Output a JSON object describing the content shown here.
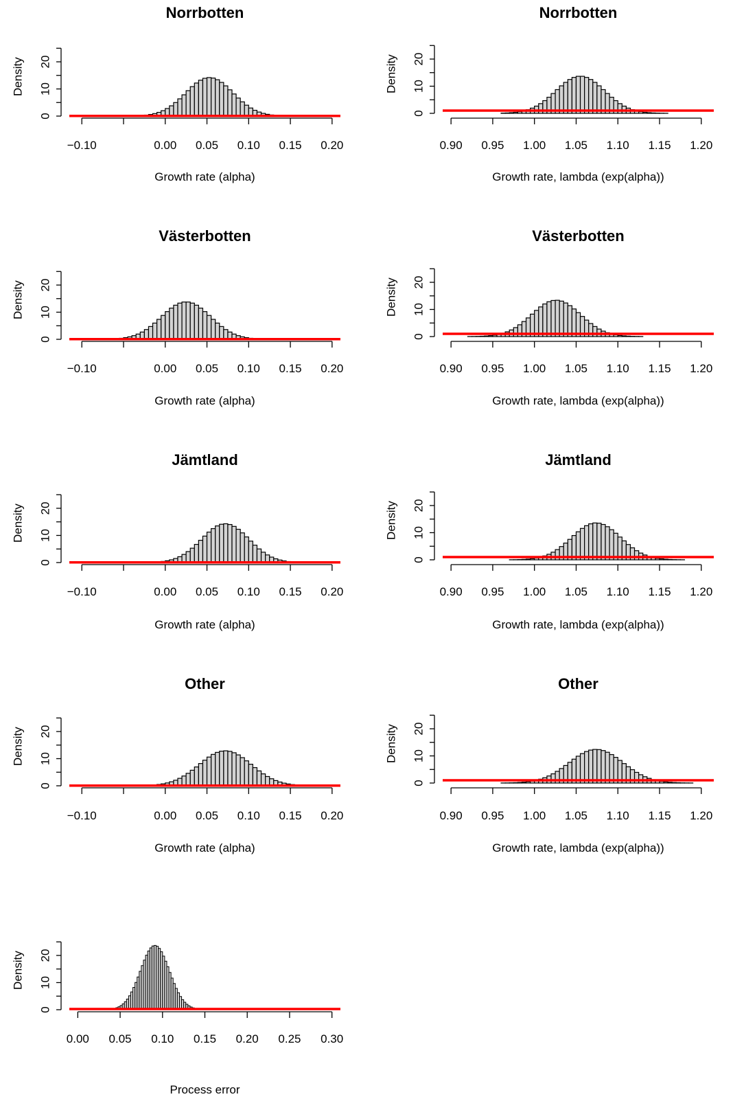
{
  "chart_data": [
    {
      "type": "bar",
      "title": "Norrbotten",
      "xlabel": "Growth rate (alpha)",
      "ylabel": "Density",
      "xlim": [
        -0.115,
        0.21
      ],
      "ylim": [
        0,
        25
      ],
      "xticks": [
        -0.1,
        -0.05,
        0.0,
        0.05,
        0.1,
        0.15,
        0.2
      ],
      "xtick_labels": [
        "−0.10",
        "",
        "0.00",
        "0.05",
        "0.10",
        "0.15",
        "0.20"
      ],
      "yticks": [
        0,
        10,
        20
      ],
      "ytick_labels": [
        "0",
        "10",
        "20"
      ],
      "histogram": {
        "mean": 0.053,
        "sd": 0.028,
        "peak_density": 14.2,
        "bin_width": 0.005,
        "range": [
          -0.05,
          0.175
        ]
      },
      "prior_line": {
        "color": "#ff0000",
        "density": 0.05
      }
    },
    {
      "type": "bar",
      "title": "Norrbotten",
      "xlabel": "Growth rate, lambda (exp(alpha))",
      "ylabel": "Density",
      "xlim": [
        0.89,
        1.215
      ],
      "ylim": [
        0,
        25
      ],
      "xticks": [
        0.9,
        0.95,
        1.0,
        1.05,
        1.1,
        1.15,
        1.2
      ],
      "xtick_labels": [
        "0.90",
        "0.95",
        "1.00",
        "1.05",
        "1.10",
        "1.15",
        "1.20"
      ],
      "yticks": [
        0,
        10,
        20
      ],
      "ytick_labels": [
        "0",
        "10",
        "20"
      ],
      "histogram": {
        "mean": 1.055,
        "sd": 0.029,
        "peak_density": 13.7,
        "bin_width": 0.005,
        "range": [
          0.96,
          1.19
        ]
      },
      "prior_line": {
        "color": "#ff0000",
        "density": 1.0
      }
    },
    {
      "type": "bar",
      "title": "Västerbotten",
      "xlabel": "Growth rate (alpha)",
      "ylabel": "Density",
      "xlim": [
        -0.115,
        0.21
      ],
      "ylim": [
        0,
        25
      ],
      "xticks": [
        -0.1,
        -0.05,
        0.0,
        0.05,
        0.1,
        0.15,
        0.2
      ],
      "xtick_labels": [
        "−0.10",
        "",
        "0.00",
        "0.05",
        "0.10",
        "0.15",
        "0.20"
      ],
      "yticks": [
        0,
        10,
        20
      ],
      "ytick_labels": [
        "0",
        "10",
        "20"
      ],
      "histogram": {
        "mean": 0.025,
        "sd": 0.029,
        "peak_density": 13.8,
        "bin_width": 0.005,
        "range": [
          -0.08,
          0.15
        ]
      },
      "prior_line": {
        "color": "#ff0000",
        "density": 0.05
      }
    },
    {
      "type": "bar",
      "title": "Västerbotten",
      "xlabel": "Growth rate, lambda (exp(alpha))",
      "ylabel": "Density",
      "xlim": [
        0.89,
        1.215
      ],
      "ylim": [
        0,
        25
      ],
      "xticks": [
        0.9,
        0.95,
        1.0,
        1.05,
        1.1,
        1.15,
        1.2
      ],
      "xtick_labels": [
        "0.90",
        "0.95",
        "1.00",
        "1.05",
        "1.10",
        "1.15",
        "1.20"
      ],
      "yticks": [
        0,
        10,
        20
      ],
      "ytick_labels": [
        "0",
        "10",
        "20"
      ],
      "histogram": {
        "mean": 1.026,
        "sd": 0.029,
        "peak_density": 13.4,
        "bin_width": 0.005,
        "range": [
          0.92,
          1.16
        ]
      },
      "prior_line": {
        "color": "#ff0000",
        "density": 1.0
      }
    },
    {
      "type": "bar",
      "title": "Jämtland",
      "xlabel": "Growth rate (alpha)",
      "ylabel": "Density",
      "xlim": [
        -0.115,
        0.21
      ],
      "ylim": [
        0,
        25
      ],
      "xticks": [
        -0.1,
        -0.05,
        0.0,
        0.05,
        0.1,
        0.15,
        0.2
      ],
      "xtick_labels": [
        "−0.10",
        "",
        "0.00",
        "0.05",
        "0.10",
        "0.15",
        "0.20"
      ],
      "yticks": [
        0,
        10,
        20
      ],
      "ytick_labels": [
        "0",
        "10",
        "20"
      ],
      "histogram": {
        "mean": 0.072,
        "sd": 0.028,
        "peak_density": 14.3,
        "bin_width": 0.005,
        "range": [
          -0.04,
          0.195
        ]
      },
      "prior_line": {
        "color": "#ff0000",
        "density": 0.05
      }
    },
    {
      "type": "bar",
      "title": "Jämtland",
      "xlabel": "Growth rate, lambda (exp(alpha))",
      "ylabel": "Density",
      "xlim": [
        0.89,
        1.215
      ],
      "ylim": [
        0,
        25
      ],
      "xticks": [
        0.9,
        0.95,
        1.0,
        1.05,
        1.1,
        1.15,
        1.2
      ],
      "xtick_labels": [
        "0.90",
        "0.95",
        "1.00",
        "1.05",
        "1.10",
        "1.15",
        "1.20"
      ],
      "yticks": [
        0,
        10,
        20
      ],
      "ytick_labels": [
        "0",
        "10",
        "20"
      ],
      "histogram": {
        "mean": 1.074,
        "sd": 0.029,
        "peak_density": 13.6,
        "bin_width": 0.005,
        "range": [
          0.97,
          1.2
        ]
      },
      "prior_line": {
        "color": "#ff0000",
        "density": 1.0
      }
    },
    {
      "type": "bar",
      "title": "Other",
      "xlabel": "Growth rate (alpha)",
      "ylabel": "Density",
      "xlim": [
        -0.115,
        0.21
      ],
      "ylim": [
        0,
        25
      ],
      "xticks": [
        -0.1,
        -0.05,
        0.0,
        0.05,
        0.1,
        0.15,
        0.2
      ],
      "xtick_labels": [
        "−0.10",
        "",
        "0.00",
        "0.05",
        "0.10",
        "0.15",
        "0.20"
      ],
      "yticks": [
        0,
        10,
        20
      ],
      "ytick_labels": [
        "0",
        "10",
        "20"
      ],
      "histogram": {
        "mean": 0.072,
        "sd": 0.031,
        "peak_density": 12.9,
        "bin_width": 0.005,
        "range": [
          -0.05,
          0.2
        ]
      },
      "prior_line": {
        "color": "#ff0000",
        "density": 0.05
      }
    },
    {
      "type": "bar",
      "title": "Other",
      "xlabel": "Growth rate, lambda (exp(alpha))",
      "ylabel": "Density",
      "xlim": [
        0.89,
        1.215
      ],
      "ylim": [
        0,
        25
      ],
      "xticks": [
        0.9,
        0.95,
        1.0,
        1.05,
        1.1,
        1.15,
        1.2
      ],
      "xtick_labels": [
        "0.90",
        "0.95",
        "1.00",
        "1.05",
        "1.10",
        "1.15",
        "1.20"
      ],
      "yticks": [
        0,
        10,
        20
      ],
      "ytick_labels": [
        "0",
        "10",
        "20"
      ],
      "histogram": {
        "mean": 1.074,
        "sd": 0.032,
        "peak_density": 12.4,
        "bin_width": 0.005,
        "range": [
          0.96,
          1.2
        ]
      },
      "prior_line": {
        "color": "#ff0000",
        "density": 1.0
      }
    },
    {
      "type": "bar",
      "title": "",
      "xlabel": "Process error",
      "ylabel": "Density",
      "xlim": [
        -0.01,
        0.31
      ],
      "ylim": [
        0,
        25
      ],
      "xticks": [
        0.0,
        0.05,
        0.1,
        0.15,
        0.2,
        0.25,
        0.3
      ],
      "xtick_labels": [
        "0.00",
        "0.05",
        "0.10",
        "0.15",
        "0.20",
        "0.25",
        "0.30"
      ],
      "yticks": [
        0,
        10,
        20
      ],
      "ytick_labels": [
        "0",
        "10",
        "20"
      ],
      "histogram": {
        "mean": 0.091,
        "sd": 0.017,
        "peak_density": 23.7,
        "bin_width": 0.0025,
        "range": [
          0.045,
          0.165
        ]
      },
      "prior_line": {
        "color": "#ff0000",
        "density": 0.25
      }
    }
  ]
}
